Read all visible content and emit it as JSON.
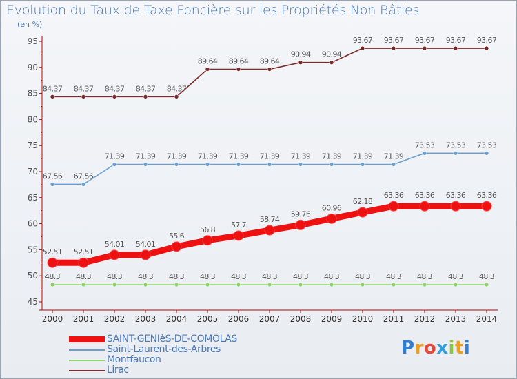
{
  "title": "Evolution du Taux de Taxe Foncière sur les Propriétés Non Bâties",
  "unit_label": "(en %)",
  "logo": {
    "text": "Proxiti",
    "letters": [
      {
        "ch": "P",
        "color": "#2f7fd6"
      },
      {
        "ch": "r",
        "color": "#f0a020"
      },
      {
        "ch": "o",
        "color": "#e84a3a"
      },
      {
        "ch": "x",
        "color": "#2f9fe0"
      },
      {
        "ch": "i",
        "color": "#8cc63f"
      },
      {
        "ch": "t",
        "color": "#f0a020"
      },
      {
        "ch": "i",
        "color": "#2f7fd6"
      }
    ]
  },
  "chart_data": {
    "type": "line",
    "x": [
      "2000",
      "2001",
      "2002",
      "2003",
      "2004",
      "2005",
      "2006",
      "2007",
      "2008",
      "2009",
      "2010",
      "2011",
      "2012",
      "2013",
      "2014"
    ],
    "ylim": [
      45,
      95
    ],
    "yticks": [
      45,
      50,
      55,
      60,
      65,
      70,
      75,
      80,
      85,
      90,
      95
    ],
    "grid": false,
    "legend_position": "bottom",
    "series": [
      {
        "name": "SAINT-GENIèS-DE-COMOLAS",
        "color": "#ee1111",
        "thick": true,
        "values": [
          52.51,
          52.51,
          54.01,
          54.01,
          55.6,
          56.8,
          57.7,
          58.74,
          59.76,
          60.96,
          62.18,
          63.36,
          63.36,
          63.36,
          63.36
        ],
        "labels": [
          "52.51",
          "52.51",
          "54.01",
          "54.01",
          "55.6",
          "56.8",
          "57.7",
          "58.74",
          "59.76",
          "60.96",
          "62.18",
          "63.36",
          "63.36",
          "63.36",
          "63.36"
        ]
      },
      {
        "name": "Saint-Laurent-des-Arbres",
        "color": "#6a9fd0",
        "thick": false,
        "values": [
          67.56,
          67.56,
          71.39,
          71.39,
          71.39,
          71.39,
          71.39,
          71.39,
          71.39,
          71.39,
          71.39,
          71.39,
          73.53,
          73.53,
          73.53
        ],
        "labels": [
          "67.56",
          "67.56",
          "71.39",
          "71.39",
          "71.39",
          "71.39",
          "71.39",
          "71.39",
          "71.39",
          "71.39",
          "71.39",
          "71.39",
          "73.53",
          "73.53",
          "73.53"
        ]
      },
      {
        "name": "Montfaucon",
        "color": "#8fd46a",
        "thick": false,
        "values": [
          48.3,
          48.3,
          48.3,
          48.3,
          48.3,
          48.3,
          48.3,
          48.3,
          48.3,
          48.3,
          48.3,
          48.3,
          48.3,
          48.3,
          48.3
        ],
        "labels": [
          "48.3",
          "48.3",
          "48.3",
          "48.3",
          "48.3",
          "48.3",
          "48.3",
          "48.3",
          "48.3",
          "48.3",
          "48.3",
          "48.3",
          "48.3",
          "48.3",
          "48.3"
        ]
      },
      {
        "name": "Lirac",
        "color": "#7a2a2a",
        "thick": false,
        "values": [
          84.37,
          84.37,
          84.37,
          84.37,
          84.37,
          89.64,
          89.64,
          89.64,
          90.94,
          90.94,
          93.67,
          93.67,
          93.67,
          93.67,
          93.67
        ],
        "labels": [
          "84.37",
          "84.37",
          "84.37",
          "84.37",
          "84.37",
          "89.64",
          "89.64",
          "89.64",
          "90.94",
          "90.94",
          "93.67",
          "93.67",
          "93.67",
          "93.67",
          "93.67"
        ]
      }
    ]
  }
}
